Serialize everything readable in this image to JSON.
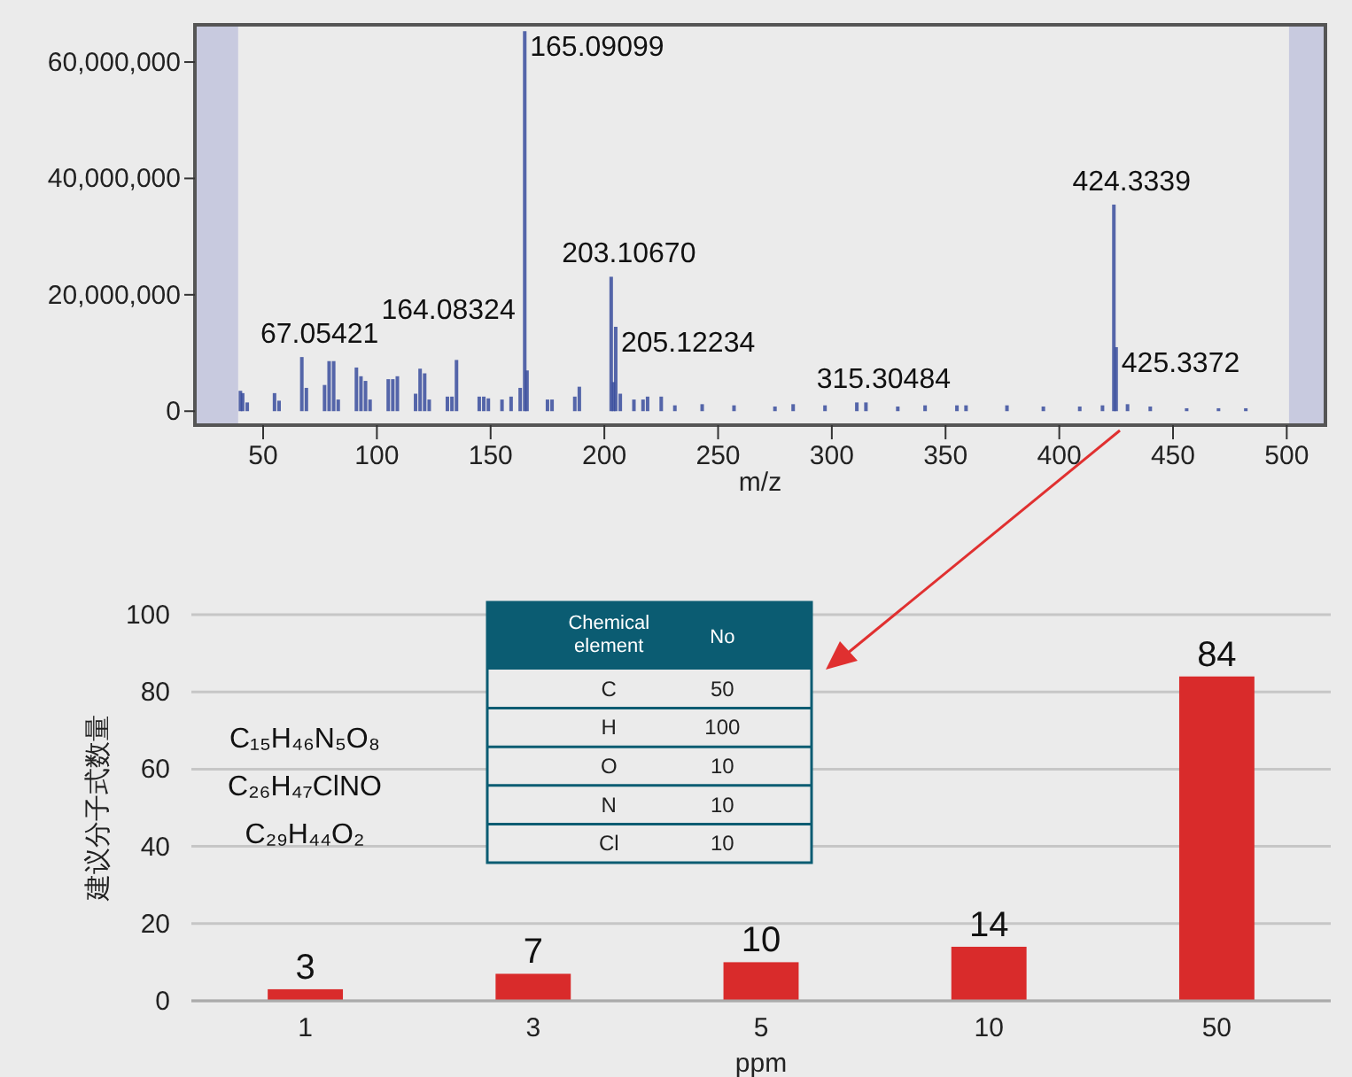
{
  "chart_data": [
    {
      "type": "bar",
      "xlabel": "m/z",
      "x": [
        40,
        41,
        43,
        55,
        57,
        67,
        69,
        77,
        79,
        81,
        83,
        91,
        93,
        95,
        97,
        105,
        107,
        109,
        117,
        119,
        121,
        123,
        131,
        133,
        135,
        145,
        147,
        149,
        155,
        159,
        163,
        165,
        166,
        175,
        177,
        187,
        189,
        203,
        204,
        205,
        207,
        213,
        217,
        219,
        225,
        231,
        243,
        257,
        275,
        283,
        297,
        311,
        315,
        329,
        341,
        355,
        359,
        377,
        393,
        409,
        419,
        424,
        425,
        430,
        440,
        456,
        470,
        482
      ],
      "series": [
        {
          "color": "#3a4d9e",
          "values": [
            3500000,
            3100000,
            1500000,
            3100000,
            1800000,
            9300000,
            4000000,
            4500000,
            8600000,
            8600000,
            2000000,
            7500000,
            6000000,
            5200000,
            2000000,
            5500000,
            5500000,
            6000000,
            3000000,
            7300000,
            6500000,
            2000000,
            2500000,
            2500000,
            8800000,
            2500000,
            2500000,
            2200000,
            2000000,
            2500000,
            4000000,
            65300000,
            7000000,
            2000000,
            2000000,
            2500000,
            4200000,
            23100000,
            5000000,
            14500000,
            3000000,
            2000000,
            2000000,
            2500000,
            2500000,
            1000000,
            1200000,
            1000000,
            800000,
            1200000,
            1000000,
            1500000,
            1500000,
            800000,
            1000000,
            1000000,
            1000000,
            1000000,
            800000,
            800000,
            1000000,
            35500000,
            11000000,
            1200000,
            800000,
            500000,
            500000,
            500000
          ]
        }
      ],
      "xlim": [
        20,
        517
      ],
      "xticks": [
        50,
        100,
        150,
        200,
        250,
        300,
        350,
        400,
        450,
        500
      ],
      "ylim": [
        -2400000,
        66400000
      ],
      "yticks": [
        0,
        {
          "value": 20000000,
          "label": "20,000,000"
        },
        {
          "value": 40000000,
          "label": "40,000,000"
        },
        {
          "value": 60000000,
          "label": "60,000,000"
        }
      ],
      "bands": [
        {
          "axis": "x",
          "from": 20,
          "to": 39,
          "color": "#c8cadf"
        },
        {
          "axis": "x",
          "from": 501,
          "to": 517,
          "color": "#c8cadf"
        }
      ],
      "annotations": [
        {
          "text": "67.05421",
          "x": 67,
          "y": 9300000
        },
        {
          "text": "164.08324",
          "x": 164,
          "y": 6800000
        },
        {
          "text": "165.09099",
          "x": 165,
          "y": 65300000
        },
        {
          "text": "203.10670",
          "x": 203,
          "y": 23100000
        },
        {
          "text": "205.12234",
          "x": 205,
          "y": 14500000
        },
        {
          "text": "315.30484",
          "x": 315,
          "y": 1500000
        },
        {
          "text": "424.3339",
          "x": 424,
          "y": 35500000
        },
        {
          "text": "425.3372",
          "x": 425,
          "y": 11000000
        }
      ]
    },
    {
      "type": "bar",
      "xlabel": "ppm",
      "ylabel": "建议分子式数量",
      "categories": [
        "1",
        "3",
        "5",
        "10",
        "50"
      ],
      "values": [
        3,
        7,
        10,
        14,
        84
      ],
      "color": "#d92b2b",
      "ylim": [
        0,
        100
      ],
      "yticks": [
        0,
        20,
        40,
        60,
        80,
        100
      ],
      "grid": "y",
      "data_labels": true,
      "annotations": [
        "C₁₅H₄₆N₅O₈",
        "C₂₆H₄₇ClNO",
        "C₂₉H₄₄O₂"
      ]
    },
    {
      "type": "other",
      "annotations": [
        "Chemical element",
        "No",
        "C",
        "50",
        "H",
        "100",
        "O",
        "10",
        "N",
        "10",
        "Cl",
        "10"
      ]
    }
  ]
}
